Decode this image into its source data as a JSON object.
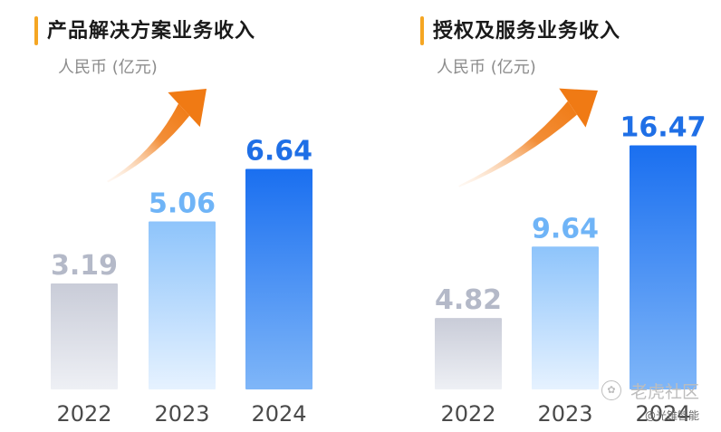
{
  "colors": {
    "bar_2022": [
      "#c9ccd8",
      "#eef0f5"
    ],
    "bar_2023": [
      "#8ec4fb",
      "#e6f2ff"
    ],
    "bar_2024": [
      "#1a6ff0",
      "#7fb6f8"
    ],
    "label_2022": "#b4b9c8",
    "label_2023": "#6fb4f7",
    "label_2024": "#1f6fe6",
    "arrow": [
      "#fde3cc",
      "#f07a14"
    ]
  },
  "chart_data": [
    {
      "type": "bar",
      "title": "产品解决方案业务收入",
      "ylabel": "人民币 (亿元)",
      "categories": [
        "2022",
        "2023",
        "2024"
      ],
      "values": [
        3.19,
        5.06,
        6.64
      ],
      "value_labels": [
        "3.19",
        "5.06",
        "6.64"
      ],
      "ylim": [
        0,
        7.2
      ],
      "decoration": "trend-arrow-up"
    },
    {
      "type": "bar",
      "title": "授权及服务业务收入",
      "ylabel": "人民币 (亿元)",
      "categories": [
        "2022",
        "2023",
        "2024"
      ],
      "values": [
        4.82,
        9.64,
        16.47
      ],
      "value_labels": [
        "4.82",
        "9.64",
        "16.47"
      ],
      "ylim": [
        0,
        17.6
      ],
      "decoration": "trend-arrow-up"
    }
  ],
  "watermark": {
    "brand": "老虎社区",
    "author": "@光锥智能"
  }
}
